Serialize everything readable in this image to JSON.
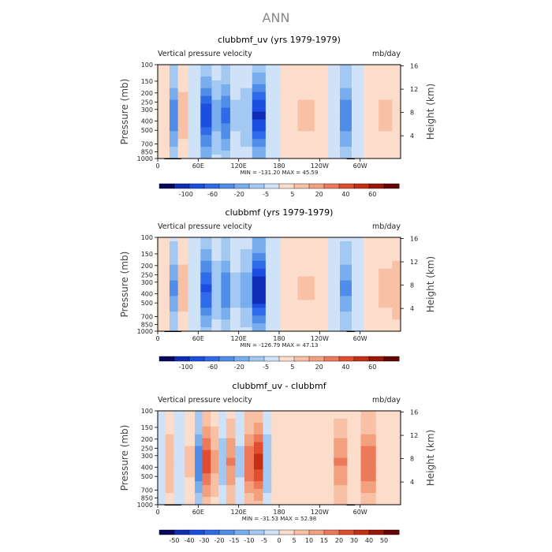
{
  "figure_title": "ANN",
  "colors": {
    "neg": [
      "#08085e",
      "#0f2db4",
      "#1c4fe0",
      "#2f6be8",
      "#4f8de9",
      "#78aeee",
      "#a3c9f3",
      "#cfe2f7"
    ],
    "pos": [
      "#fcdccb",
      "#f8c1a6",
      "#f3a07f",
      "#ec7a5a",
      "#e04e2f",
      "#c42f14",
      "#9c1708",
      "#660505"
    ]
  },
  "chart_data": [
    {
      "type": "heatmap",
      "title": "clubbmf_uv (yrs 1979-1979)",
      "subtitle_left": "Vertical pressure velocity",
      "subtitle_right": "mb/day",
      "ylabel": "Pressure (mb)",
      "ylabel_right": "Height (km)",
      "x_ticks": [
        "0",
        "60E",
        "120E",
        "180",
        "120W",
        "60W"
      ],
      "y_ticks": [
        "100",
        "150",
        "200",
        "250",
        "300",
        "400",
        "500",
        "700",
        "850",
        "1000"
      ],
      "y_ticks_right": [
        "16",
        "12",
        "8",
        "4"
      ],
      "stats": "MIN = -131.20   MAX =  45.59",
      "min": -131.2,
      "max": 45.59,
      "colorbar_labels": [
        "-100",
        "-60",
        "-20",
        "-5",
        "5",
        "20",
        "40",
        "60"
      ],
      "columns": [
        {
          "lon": 10,
          "v": 3
        },
        {
          "lon": 25,
          "v": -60
        },
        {
          "lon": 35,
          "v": 25
        },
        {
          "lon": 55,
          "v": -5
        },
        {
          "lon": 72,
          "v": -90
        },
        {
          "lon": 88,
          "v": -40
        },
        {
          "lon": 100,
          "v": -70
        },
        {
          "lon": 115,
          "v": -20
        },
        {
          "lon": 130,
          "v": -30
        },
        {
          "lon": 150,
          "v": -100
        },
        {
          "lon": 170,
          "v": -5
        },
        {
          "lon": 195,
          "v": 15
        },
        {
          "lon": 220,
          "v": 20
        },
        {
          "lon": 245,
          "v": 15
        },
        {
          "lon": 260,
          "v": -3
        },
        {
          "lon": 280,
          "v": -60
        },
        {
          "lon": 295,
          "v": -10
        },
        {
          "lon": 315,
          "v": 15
        },
        {
          "lon": 340,
          "v": 20
        },
        {
          "lon": 355,
          "v": 5
        }
      ]
    },
    {
      "type": "heatmap",
      "title": "clubbmf (yrs 1979-1979)",
      "subtitle_left": "Vertical pressure velocity",
      "subtitle_right": "mb/day",
      "ylabel": "Pressure (mb)",
      "ylabel_right": "Height (km)",
      "x_ticks": [
        "0",
        "60E",
        "120E",
        "180",
        "120W",
        "60W"
      ],
      "y_ticks": [
        "100",
        "150",
        "200",
        "250",
        "300",
        "400",
        "500",
        "700",
        "850",
        "1000"
      ],
      "y_ticks_right": [
        "16",
        "12",
        "8",
        "4"
      ],
      "stats": "MIN = -126.79   MAX =  47.13",
      "min": -126.79,
      "max": 47.13,
      "colorbar_labels": [
        "-100",
        "-60",
        "-20",
        "-5",
        "5",
        "20",
        "40",
        "60"
      ],
      "columns": [
        {
          "lon": 10,
          "v": 3
        },
        {
          "lon": 25,
          "v": -50
        },
        {
          "lon": 35,
          "v": 25
        },
        {
          "lon": 55,
          "v": -10
        },
        {
          "lon": 72,
          "v": -80
        },
        {
          "lon": 88,
          "v": -30
        },
        {
          "lon": 100,
          "v": -60
        },
        {
          "lon": 115,
          "v": -20
        },
        {
          "lon": 130,
          "v": -40
        },
        {
          "lon": 150,
          "v": -110
        },
        {
          "lon": 170,
          "v": -10
        },
        {
          "lon": 195,
          "v": 10
        },
        {
          "lon": 220,
          "v": 18
        },
        {
          "lon": 245,
          "v": 15
        },
        {
          "lon": 260,
          "v": -3
        },
        {
          "lon": 280,
          "v": -50
        },
        {
          "lon": 295,
          "v": -8
        },
        {
          "lon": 315,
          "v": 15
        },
        {
          "lon": 340,
          "v": 22
        },
        {
          "lon": 355,
          "v": 30
        }
      ]
    },
    {
      "type": "heatmap",
      "title": "clubbmf_uv - clubbmf",
      "subtitle_left": "Vertical pressure velocity",
      "subtitle_right": "mb/day",
      "ylabel": "Pressure (mb)",
      "ylabel_right": "Height (km)",
      "x_ticks": [
        "0",
        "60E",
        "120E",
        "180",
        "120W",
        "60W"
      ],
      "y_ticks": [
        "100",
        "150",
        "200",
        "250",
        "300",
        "400",
        "500",
        "700",
        "850",
        "1000"
      ],
      "y_ticks_right": [
        "16",
        "12",
        "8",
        "4"
      ],
      "stats": "MIN = -31.53   MAX =  52.98",
      "min": -31.53,
      "max": 52.98,
      "colorbar_labels": [
        "-50",
        "-40",
        "-30",
        "-20",
        "-15",
        "-10",
        "-5",
        "0",
        "5",
        "10",
        "15",
        "20",
        "30",
        "40",
        "50"
      ],
      "columns": [
        {
          "lon": 5,
          "v": -3
        },
        {
          "lon": 18,
          "v": 12
        },
        {
          "lon": 30,
          "v": -6
        },
        {
          "lon": 50,
          "v": 8
        },
        {
          "lon": 60,
          "v": -25
        },
        {
          "lon": 72,
          "v": 30
        },
        {
          "lon": 85,
          "v": 15
        },
        {
          "lon": 95,
          "v": -10
        },
        {
          "lon": 108,
          "v": 20
        },
        {
          "lon": 122,
          "v": -8
        },
        {
          "lon": 135,
          "v": 25
        },
        {
          "lon": 150,
          "v": 35
        },
        {
          "lon": 162,
          "v": -12
        },
        {
          "lon": 175,
          "v": 3
        },
        {
          "lon": 200,
          "v": 6
        },
        {
          "lon": 225,
          "v": 4
        },
        {
          "lon": 250,
          "v": 3
        },
        {
          "lon": 272,
          "v": 20
        },
        {
          "lon": 290,
          "v": 3
        },
        {
          "lon": 312,
          "v": 25
        },
        {
          "lon": 335,
          "v": 5
        }
      ]
    }
  ]
}
